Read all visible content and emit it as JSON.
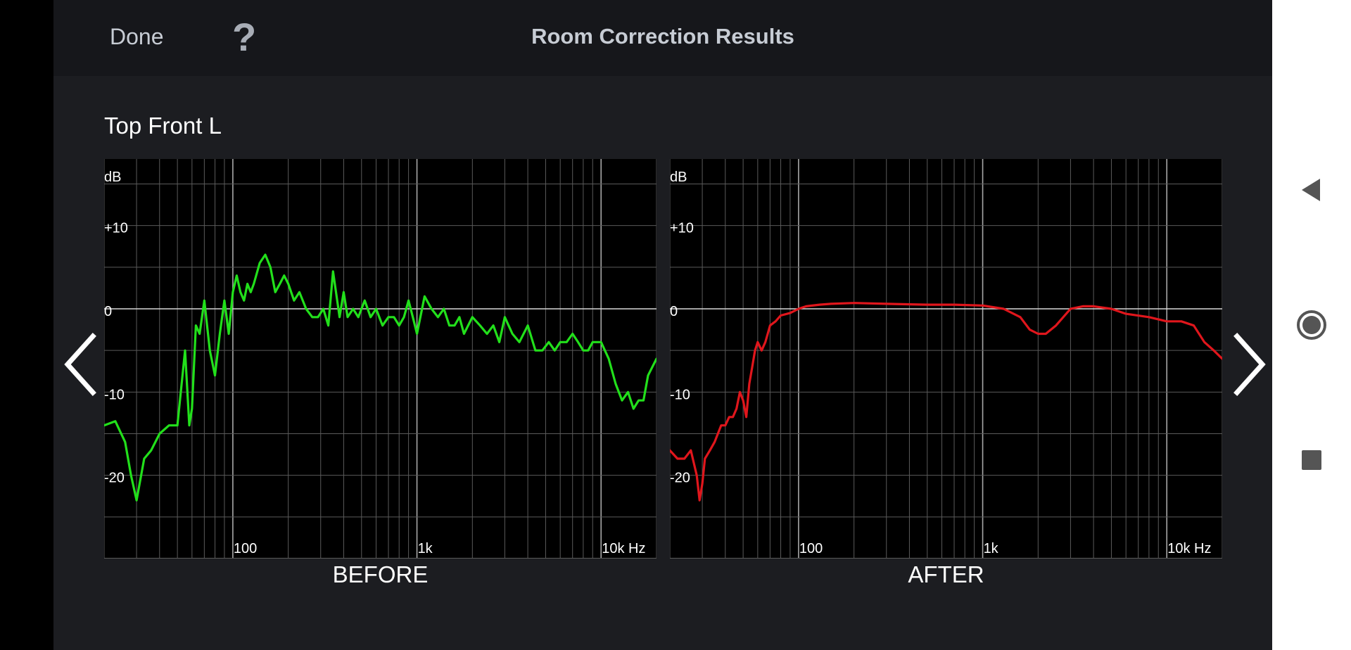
{
  "header": {
    "done_label": "Done",
    "help_label": "?",
    "title": "Room Correction Results"
  },
  "speaker_name": "Top Front L",
  "icons": {
    "prev": "chevron-left-icon",
    "next": "chevron-right-icon",
    "sys_back": "triangle-back-icon",
    "sys_home": "circle-home-icon",
    "sys_recents": "square-recents-icon"
  },
  "colors": {
    "before_curve": "#22e01b",
    "after_curve": "#e0161c",
    "grid": "#707070",
    "zero_line": "#d8d8d8"
  },
  "chart_data": [
    {
      "type": "line",
      "caption": "BEFORE",
      "ylabel": "dB",
      "x_scale": "log",
      "xlim": [
        20,
        20000
      ],
      "ylim": [
        -30,
        18
      ],
      "x_ticks": [
        {
          "value": 100,
          "label": "100"
        },
        {
          "value": 1000,
          "label": "1k"
        },
        {
          "value": 10000,
          "label": "10k Hz"
        }
      ],
      "y_ticks": [
        {
          "value": 10,
          "label": "+10"
        },
        {
          "value": 0,
          "label": "0"
        },
        {
          "value": -10,
          "label": "-10"
        },
        {
          "value": -20,
          "label": "-20"
        }
      ],
      "grid": true,
      "series": [
        {
          "color": "#22e01b",
          "x": [
            20,
            23,
            26,
            28,
            30,
            33,
            36,
            40,
            45,
            50,
            55,
            58,
            60,
            63,
            66,
            70,
            75,
            80,
            85,
            90,
            95,
            100,
            105,
            110,
            115,
            120,
            125,
            130,
            140,
            150,
            160,
            170,
            180,
            190,
            200,
            215,
            230,
            250,
            270,
            290,
            310,
            330,
            350,
            380,
            400,
            420,
            450,
            480,
            520,
            560,
            600,
            650,
            700,
            750,
            800,
            850,
            900,
            950,
            1000,
            1100,
            1200,
            1300,
            1400,
            1500,
            1600,
            1700,
            1800,
            2000,
            2200,
            2400,
            2600,
            2800,
            3000,
            3300,
            3600,
            4000,
            4400,
            4800,
            5200,
            5600,
            6000,
            6500,
            7000,
            7500,
            8000,
            8500,
            9000,
            10000,
            11000,
            12000,
            13000,
            14000,
            15000,
            16000,
            17000,
            18000,
            20000
          ],
          "y": [
            -14,
            -13.5,
            -16,
            -20,
            -23,
            -18,
            -17,
            -15,
            -14,
            -14,
            -5,
            -14,
            -12,
            -2,
            -3,
            1,
            -5,
            -8,
            -3,
            1,
            -3,
            2,
            4,
            2,
            1,
            3,
            2,
            3,
            5.5,
            6.5,
            5,
            2,
            3,
            4,
            3,
            1,
            2,
            0,
            -1,
            -1,
            0,
            -2,
            4.5,
            -1,
            2,
            -1,
            0,
            -1,
            1,
            -1,
            0,
            -2,
            -1,
            -1,
            -2,
            -1,
            1,
            -1,
            -3,
            1.5,
            0,
            -1,
            0,
            -2,
            -2,
            -1,
            -3,
            -1,
            -2,
            -3,
            -2,
            -4,
            -1,
            -3,
            -4,
            -2,
            -5,
            -5,
            -4,
            -5,
            -4,
            -4,
            -3,
            -4,
            -5,
            -5,
            -4,
            -4,
            -6,
            -9,
            -11,
            -10,
            -12,
            -11,
            -11,
            -8,
            -6
          ]
        }
      ]
    },
    {
      "type": "line",
      "caption": "AFTER",
      "ylabel": "dB",
      "x_scale": "log",
      "xlim": [
        20,
        20000
      ],
      "ylim": [
        -30,
        18
      ],
      "x_ticks": [
        {
          "value": 100,
          "label": "100"
        },
        {
          "value": 1000,
          "label": "1k"
        },
        {
          "value": 10000,
          "label": "10k Hz"
        }
      ],
      "y_ticks": [
        {
          "value": 10,
          "label": "+10"
        },
        {
          "value": 0,
          "label": "0"
        },
        {
          "value": -10,
          "label": "-10"
        },
        {
          "value": -20,
          "label": "-20"
        }
      ],
      "grid": true,
      "series": [
        {
          "color": "#e0161c",
          "x": [
            20,
            22,
            24,
            26,
            28,
            29,
            30,
            31,
            33,
            35,
            38,
            40,
            42,
            44,
            46,
            48,
            50,
            52,
            54,
            56,
            58,
            60,
            63,
            66,
            70,
            75,
            80,
            90,
            100,
            110,
            130,
            150,
            200,
            300,
            500,
            700,
            1000,
            1300,
            1600,
            1800,
            2000,
            2200,
            2500,
            3000,
            3500,
            4000,
            5000,
            6000,
            8000,
            10000,
            12000,
            14000,
            16000,
            18000,
            20000
          ],
          "y": [
            -17,
            -18,
            -18,
            -17,
            -20,
            -23,
            -21,
            -18,
            -17,
            -16,
            -14,
            -14,
            -13,
            -13,
            -12,
            -10,
            -11,
            -13,
            -9,
            -7,
            -5,
            -4,
            -5,
            -4,
            -2,
            -1.5,
            -0.8,
            -0.5,
            0,
            0.3,
            0.5,
            0.6,
            0.7,
            0.6,
            0.5,
            0.5,
            0.4,
            0,
            -1,
            -2.5,
            -3,
            -3,
            -2,
            0,
            0.3,
            0.3,
            0,
            -0.6,
            -1,
            -1.5,
            -1.5,
            -2,
            -4,
            -5,
            -6
          ]
        }
      ]
    }
  ]
}
